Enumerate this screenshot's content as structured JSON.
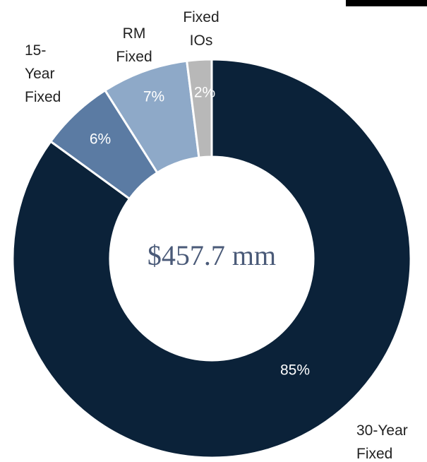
{
  "chart_data": {
    "type": "donut",
    "center_label": "$457.7 mm",
    "categories": [
      [
        "30-Year",
        "Fixed"
      ],
      [
        "15-",
        "Year",
        "Fixed"
      ],
      [
        "RM",
        "Fixed"
      ],
      [
        "Fixed",
        "IOs"
      ]
    ],
    "values": [
      85,
      6,
      7,
      2
    ],
    "value_labels": [
      "85%",
      "6%",
      "7%",
      "2%"
    ],
    "colors": [
      "#0b2239",
      "#5b7ba3",
      "#8ea9c8",
      "#b8b8b8"
    ]
  }
}
